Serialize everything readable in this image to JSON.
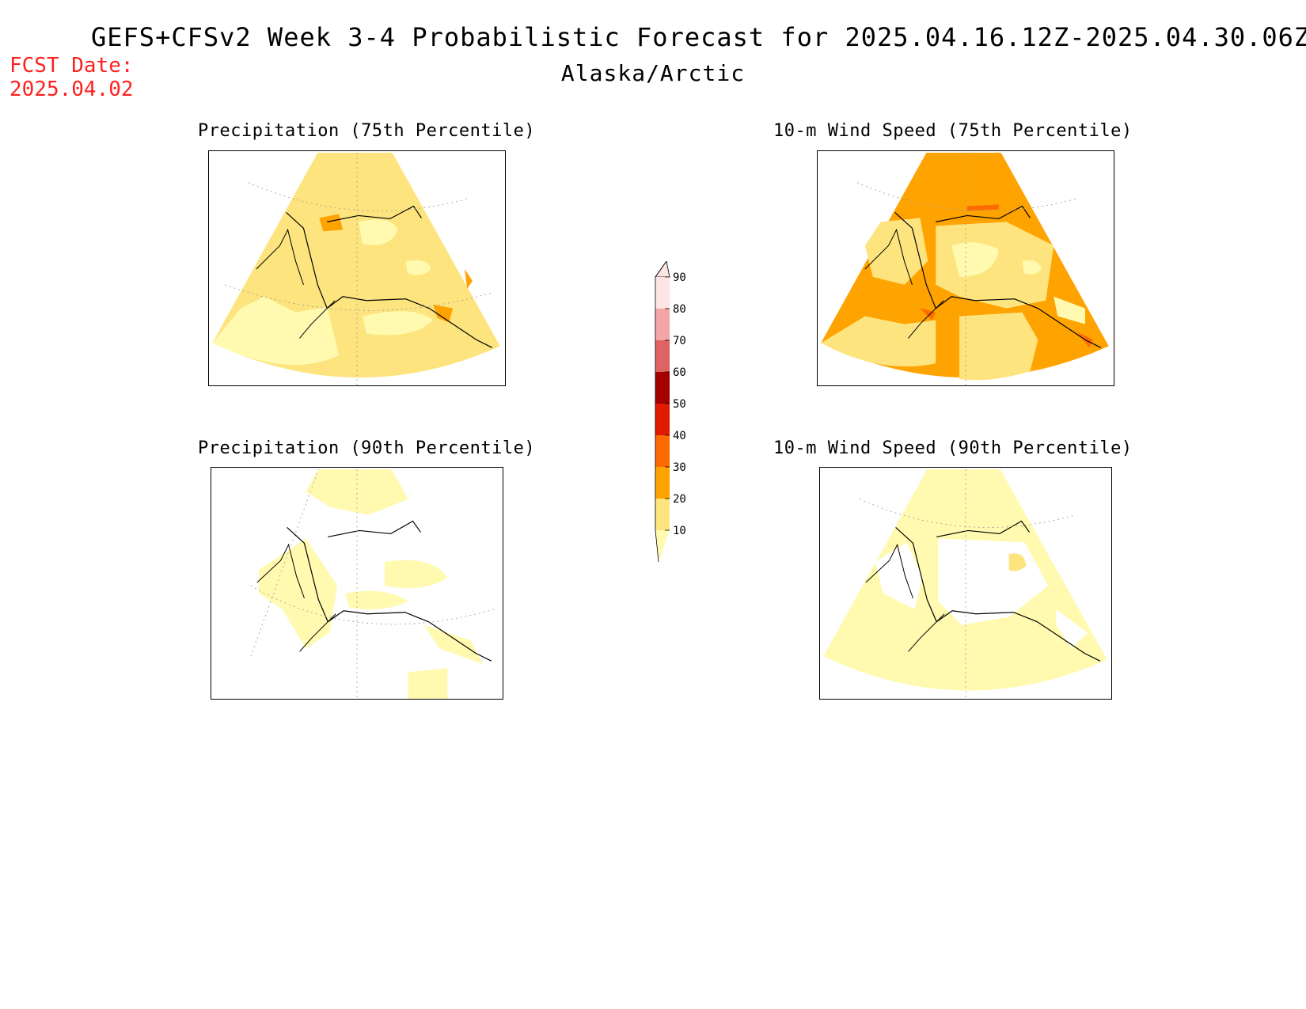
{
  "header": {
    "title": "GEFS+CFSv2 Week 3-4 Probabilistic Forecast for 2025.04.16.12Z-2025.04.30.06Z",
    "region": "Alaska/Arctic",
    "fcst_label": "FCST Date:",
    "fcst_date": "2025.04.02"
  },
  "panels": [
    {
      "id": "precip75",
      "title": "Precipitation (75th Percentile)",
      "base_category": 20,
      "base_color": "#fde47e",
      "patches": [
        {
          "category": 10,
          "color": "#fffaaf"
        },
        {
          "category": 30,
          "color": "#ffa300"
        }
      ]
    },
    {
      "id": "wind75",
      "title": "10-m Wind Speed (75th Percentile)",
      "base_category": 30,
      "base_color": "#ffa300",
      "patches": [
        {
          "category": 20,
          "color": "#fde47e"
        },
        {
          "category": 10,
          "color": "#fffaaf"
        },
        {
          "category": 40,
          "color": "#ff6a00"
        }
      ]
    },
    {
      "id": "precip90",
      "title": "Precipitation (90th Percentile)",
      "base_category": 0,
      "base_color": "#ffffff",
      "patches": [
        {
          "category": 10,
          "color": "#fffaaf"
        }
      ]
    },
    {
      "id": "wind90",
      "title": "10-m Wind Speed (90th Percentile)",
      "base_category": 10,
      "base_color": "#fffaaf",
      "patches": [
        {
          "category": 0,
          "color": "#ffffff"
        },
        {
          "category": 20,
          "color": "#fde47e"
        }
      ]
    }
  ],
  "legend": {
    "levels": [
      "10",
      "20",
      "30",
      "40",
      "50",
      "60",
      "70",
      "80",
      "90"
    ],
    "colors": [
      "#fffaaf",
      "#fde47e",
      "#ffa300",
      "#ff6a00",
      "#e01b00",
      "#a40000",
      "#df6363",
      "#f4a6a6",
      "#ffe4e4"
    ]
  }
}
